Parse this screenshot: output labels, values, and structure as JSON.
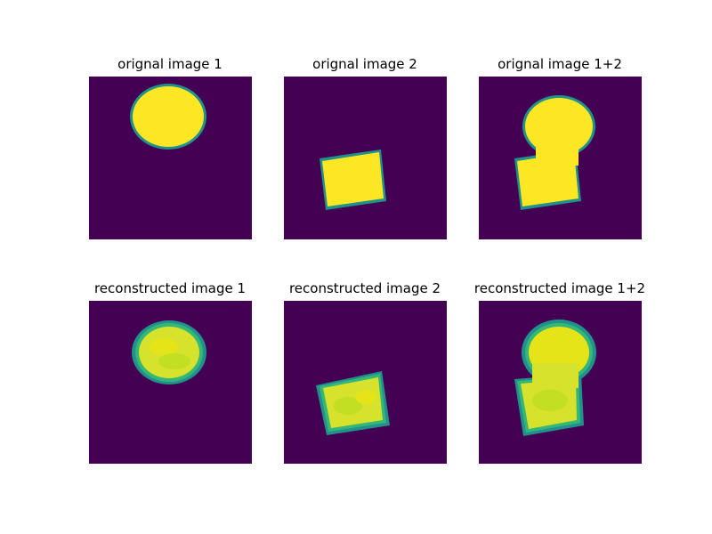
{
  "colors": {
    "background": "#440154",
    "fill": "#fde725",
    "edge": "#21918c",
    "edge_light": "#35b779",
    "recon_fill": "#d6e22b",
    "recon_mid": "#b5de2b"
  },
  "panels": [
    {
      "title": "orignal image 1"
    },
    {
      "title": "orignal image 2"
    },
    {
      "title": "orignal image 1+2"
    },
    {
      "title": "reconstructed image 1"
    },
    {
      "title": "reconstructed image 2"
    },
    {
      "title": "reconstructed image 1+2"
    }
  ]
}
